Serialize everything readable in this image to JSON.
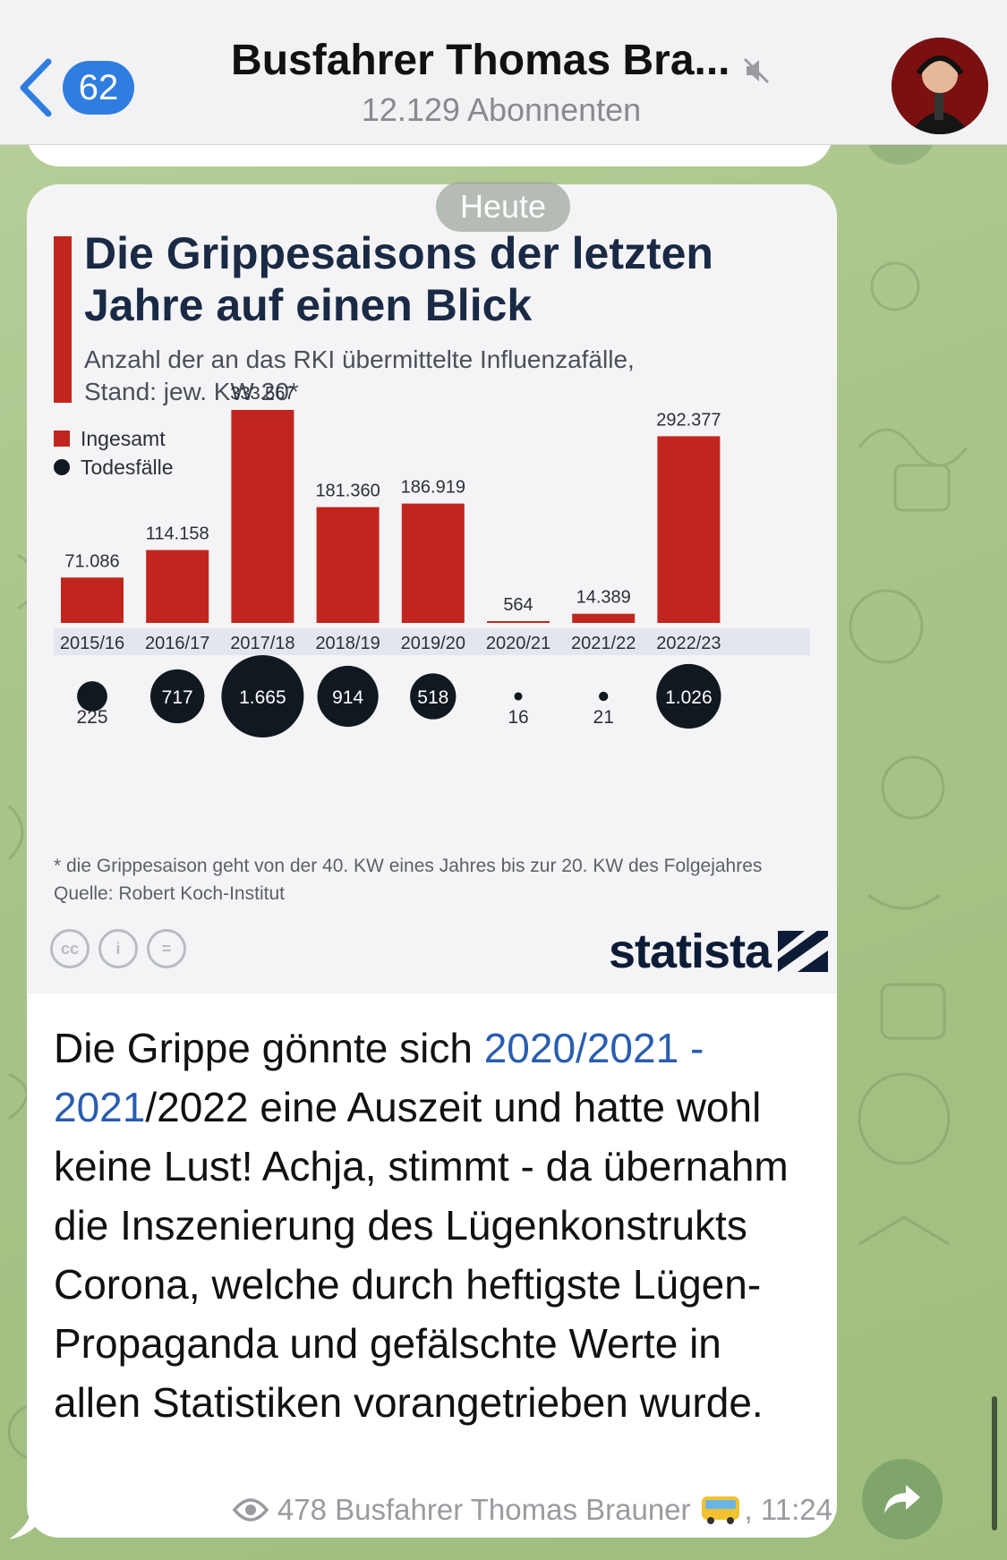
{
  "header": {
    "back_count": "62",
    "title": "Busfahrer Thomas Bra...",
    "subscribers": "12.129 Abonnenten"
  },
  "date_pill": "Heute",
  "infographic": {
    "title_line1": "Die Grippesaisons der letzten",
    "title_line2": "Jahre auf einen Blick",
    "subtitle_line1": "Anzahl der an das RKI übermittelte Influenzafälle,",
    "subtitle_line2": "Stand: jew. KW 20*",
    "footnote_line1": "* die Grippesaison geht von der 40. KW eines Jahres bis zur 20. KW des Folgejahres",
    "footnote_line2": "Quelle: Robert Koch-Institut",
    "brand": "statista",
    "cc_labels": [
      "cc",
      "i",
      "="
    ]
  },
  "chart_data": {
    "type": "bar",
    "title": "Die Grippesaisons der letzten Jahre auf einen Blick",
    "subtitle": "Anzahl der an das RKI übermittelte Influenzafälle, Stand: jew. KW 20*",
    "categories": [
      "2015/16",
      "2016/17",
      "2017/18",
      "2018/19",
      "2019/20",
      "2020/21",
      "2021/22",
      "2022/23"
    ],
    "series": [
      {
        "name": "Ingesamt",
        "values": [
          71086,
          114158,
          333567,
          181360,
          186919,
          564,
          14389,
          292377
        ],
        "labels": [
          "71.086",
          "114.158",
          "333.567",
          "181.360",
          "186.919",
          "564",
          "14.389",
          "292.377"
        ],
        "color": "#c1261e"
      },
      {
        "name": "Todesfälle",
        "values": [
          225,
          717,
          1665,
          914,
          518,
          16,
          21,
          1026
        ],
        "labels": [
          "225",
          "717",
          "1.665",
          "914",
          "518",
          "16",
          "21",
          "1.026"
        ],
        "color": "#101820"
      }
    ],
    "ylim": [
      0,
      333567
    ],
    "legend": "top-left",
    "grid": false
  },
  "message": {
    "text_before": "Die Grippe gönnte sich ",
    "link1": "2020/2021",
    "sep": " -",
    "link2": "2021",
    "text_after": "/2022 eine Auszeit und hatte wohl keine Lust! Achja, stimmt - da übernahm die Inszenierung des Lügenkonstrukts Corona, welche durch heftigste Lügen-Propaganda und gefälschte Werte in allen Statistiken vorangetrieben wurde.",
    "views": "478",
    "author": "Busfahrer Thomas Brauner",
    "time": ", 11:24"
  },
  "colors": {
    "accent_red": "#c1261e",
    "navy": "#1a2a45",
    "link_blue": "#2a5db0",
    "badge_blue": "#2f7de1"
  }
}
